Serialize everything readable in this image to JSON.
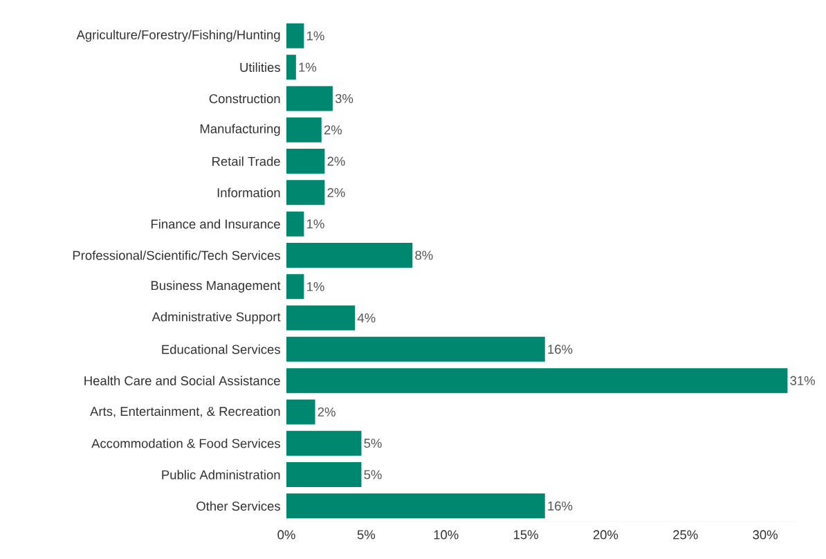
{
  "chart_data": {
    "type": "bar",
    "orientation": "horizontal",
    "categories": [
      "Agriculture/Forestry/Fishing/Hunting",
      "Utilities",
      "Construction",
      "Manufacturing",
      "Retail Trade",
      "Information",
      "Finance and Insurance",
      "Professional/Scientific/Tech Services",
      "Business Management",
      "Administrative Support",
      "Educational Services",
      "Health Care and Social Assistance",
      "Arts, Entertainment, & Recreation",
      "Accommodation & Food Services",
      "Public Administration",
      "Other Services"
    ],
    "values": [
      1.1,
      0.6,
      2.9,
      2.2,
      2.4,
      2.4,
      1.1,
      7.9,
      1.1,
      4.3,
      16.2,
      31.4,
      1.8,
      4.7,
      4.7,
      16.2
    ],
    "value_labels": [
      "1%",
      "1%",
      "3%",
      "2%",
      "2%",
      "2%",
      "1%",
      "8%",
      "1%",
      "4%",
      "16%",
      "31%",
      "2%",
      "5%",
      "5%",
      "16%"
    ],
    "color": "#00876f",
    "xlim": [
      0,
      32
    ],
    "xticks": [
      {
        "value": 0,
        "label": "0%"
      },
      {
        "value": 5,
        "label": "5%"
      },
      {
        "value": 10,
        "label": "10%"
      },
      {
        "value": 15,
        "label": "15%"
      },
      {
        "value": 20,
        "label": "20%"
      },
      {
        "value": 25,
        "label": "25%"
      },
      {
        "value": 30,
        "label": "30%"
      }
    ]
  }
}
